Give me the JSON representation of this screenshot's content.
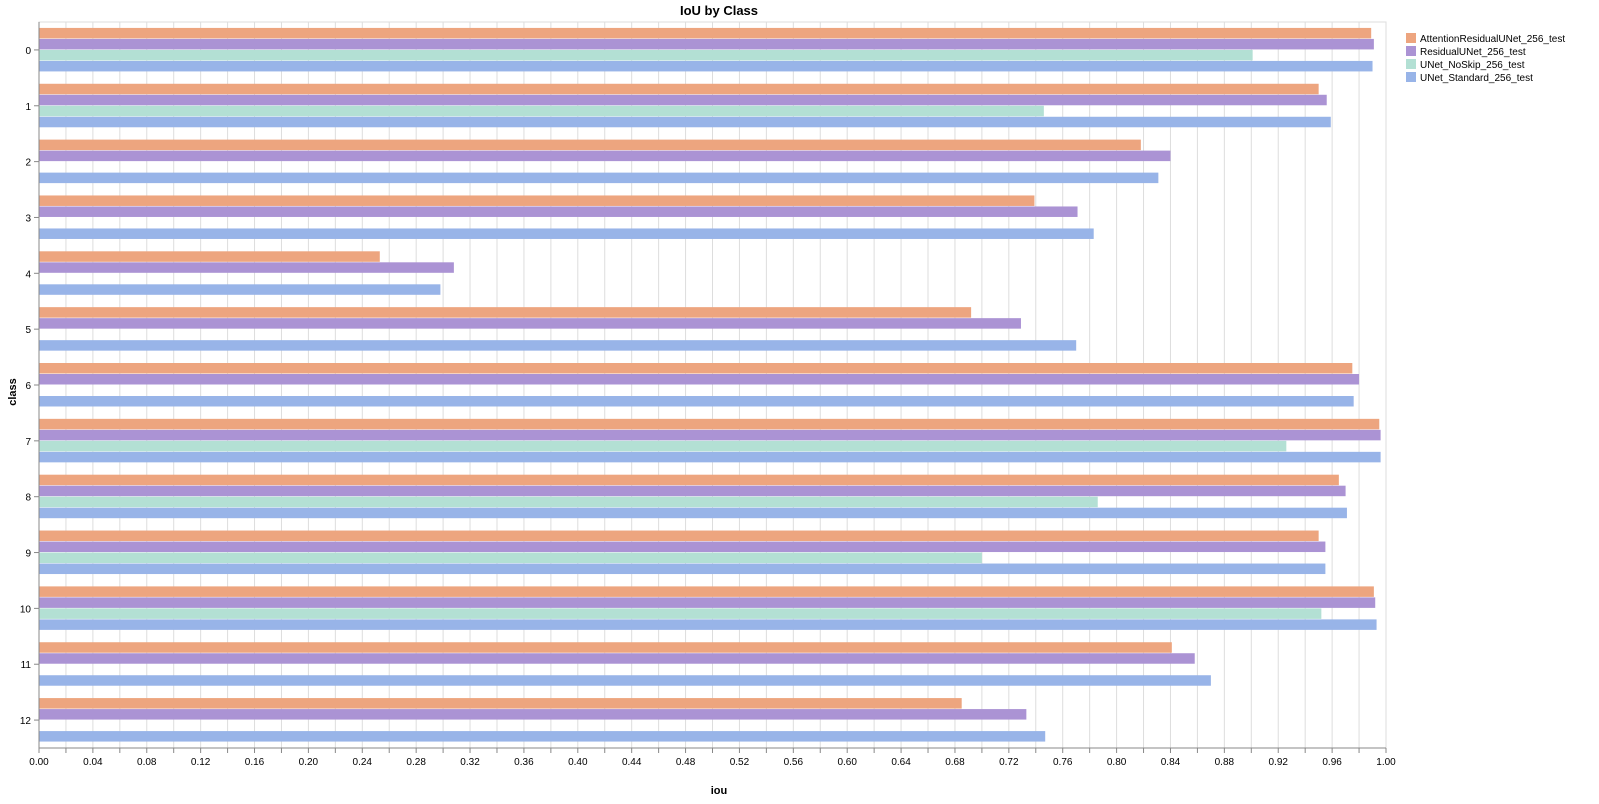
{
  "chart_data": {
    "type": "bar",
    "orientation": "horizontal",
    "title": "IoU by Class",
    "xlabel": "iou",
    "ylabel": "class",
    "xlim": [
      0,
      1
    ],
    "x_ticks": [
      "0.00",
      "0.04",
      "0.08",
      "0.12",
      "0.16",
      "0.20",
      "0.24",
      "0.28",
      "0.32",
      "0.36",
      "0.40",
      "0.44",
      "0.48",
      "0.52",
      "0.56",
      "0.60",
      "0.64",
      "0.68",
      "0.72",
      "0.76",
      "0.80",
      "0.84",
      "0.88",
      "0.92",
      "0.96",
      "1.00"
    ],
    "grid": true,
    "legend_position": "top-right",
    "categories": [
      "0",
      "1",
      "2",
      "3",
      "4",
      "5",
      "6",
      "7",
      "8",
      "9",
      "10",
      "11",
      "12"
    ],
    "series": [
      {
        "name": "AttentionResidualUNet_256_test",
        "color": "#EDA57F",
        "values": [
          0.989,
          0.95,
          0.818,
          0.739,
          0.253,
          0.692,
          0.975,
          0.995,
          0.965,
          0.95,
          0.991,
          0.841,
          0.685
        ]
      },
      {
        "name": "ResidualUNet_256_test",
        "color": "#AB93D4",
        "values": [
          0.991,
          0.956,
          0.84,
          0.771,
          0.308,
          0.729,
          0.98,
          0.996,
          0.97,
          0.955,
          0.992,
          0.858,
          0.733
        ]
      },
      {
        "name": "UNet_NoSkip_256_test",
        "color": "#B3E0D4",
        "values": [
          0.901,
          0.746,
          null,
          null,
          null,
          null,
          null,
          0.926,
          0.786,
          0.7,
          0.952,
          null,
          null
        ]
      },
      {
        "name": "UNet_Standard_256_test",
        "color": "#98B4E8",
        "values": [
          0.99,
          0.959,
          0.831,
          0.783,
          0.298,
          0.77,
          0.976,
          0.996,
          0.971,
          0.955,
          0.993,
          0.87,
          0.747
        ]
      }
    ]
  }
}
